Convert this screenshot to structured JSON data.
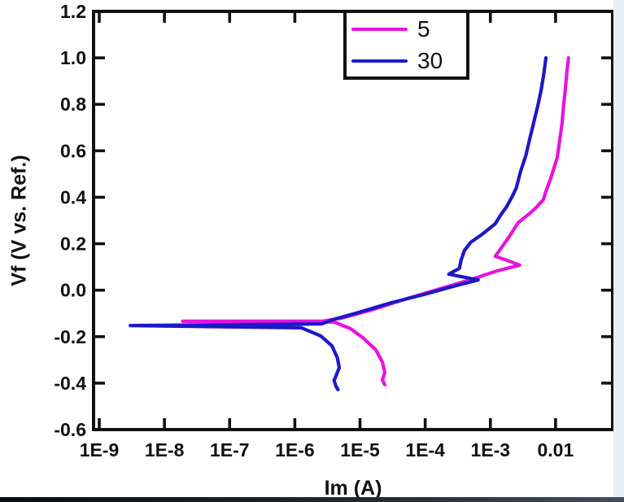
{
  "colors": {
    "series_5": "#E812E0",
    "series_30": "#1D18C8",
    "axis_frame": "#111111",
    "right_edge_strip": "#eaeff6",
    "bottom_edge_bar": "#232932"
  },
  "chart_data": {
    "type": "line",
    "title": "",
    "xlabel": "Im (A)",
    "ylabel": "Vf (V vs. Ref.)",
    "x_scale": "log",
    "xlim_log10": [
      -9.0875,
      -1.125
    ],
    "ylim": [
      -0.6,
      1.2
    ],
    "grid": false,
    "legend_position": "top-center",
    "x_ticks": [
      {
        "log10": -9,
        "label": "1E-9"
      },
      {
        "log10": -8,
        "label": "1E-8"
      },
      {
        "log10": -7,
        "label": "1E-7"
      },
      {
        "log10": -6,
        "label": "1E-6"
      },
      {
        "log10": -5,
        "label": "1E-5"
      },
      {
        "log10": -4,
        "label": "1E-4"
      },
      {
        "log10": -3,
        "label": "1E-3"
      },
      {
        "log10": -2,
        "label": "0.01"
      }
    ],
    "y_ticks": [
      {
        "value": 1.2,
        "label": "1.2"
      },
      {
        "value": 1.0,
        "label": "1.0"
      },
      {
        "value": 0.8,
        "label": "0.8"
      },
      {
        "value": 0.6,
        "label": "0.6"
      },
      {
        "value": 0.4,
        "label": "0.4"
      },
      {
        "value": 0.2,
        "label": "0.2"
      },
      {
        "value": 0.0,
        "label": "0.0"
      },
      {
        "value": -0.2,
        "label": "-0.2"
      },
      {
        "value": -0.4,
        "label": "-0.4"
      },
      {
        "value": -0.6,
        "label": "-0.6"
      }
    ],
    "series": [
      {
        "name": "5",
        "color": "#E812E0",
        "points": [
          [
            0.0158,
            1.0
          ],
          [
            0.0148,
            0.93
          ],
          [
            0.0141,
            0.86
          ],
          [
            0.0132,
            0.79
          ],
          [
            0.0126,
            0.72
          ],
          [
            0.0115,
            0.64
          ],
          [
            0.0106,
            0.57
          ],
          [
            0.0093,
            0.52
          ],
          [
            0.0084,
            0.48
          ],
          [
            0.0072,
            0.43
          ],
          [
            0.0065,
            0.39
          ],
          [
            0.005,
            0.355
          ],
          [
            0.004,
            0.33
          ],
          [
            0.00266,
            0.29
          ],
          [
            0.00194,
            0.23
          ],
          [
            0.00145,
            0.18
          ],
          [
            0.00119,
            0.146
          ],
          [
            0.00178,
            0.129
          ],
          [
            0.00282,
            0.108
          ],
          [
            0.00126,
            0.083
          ],
          [
            0.00053,
            0.048
          ],
          [
            0.000168,
            0.006
          ],
          [
            5.3e-05,
            -0.036
          ],
          [
            1.68e-05,
            -0.081
          ],
          [
            5.3e-06,
            -0.12
          ],
          [
            2.6e-06,
            -0.134
          ],
          [
            1.9e-08,
            -0.134
          ],
          [
            4e-06,
            -0.137
          ],
          [
            7.1e-06,
            -0.165
          ],
          [
            1.1e-05,
            -0.204
          ],
          [
            1.74e-05,
            -0.256
          ],
          [
            2.2e-05,
            -0.309
          ],
          [
            2.4e-05,
            -0.354
          ],
          [
            2.2e-05,
            -0.386
          ],
          [
            2.4e-05,
            -0.407
          ]
        ]
      },
      {
        "name": "30",
        "color": "#1D18C8",
        "points": [
          [
            0.0071,
            1.0
          ],
          [
            0.0066,
            0.93
          ],
          [
            0.006,
            0.86
          ],
          [
            0.0053,
            0.79
          ],
          [
            0.0046,
            0.72
          ],
          [
            0.004,
            0.65
          ],
          [
            0.0035,
            0.58
          ],
          [
            0.0029,
            0.51
          ],
          [
            0.0025,
            0.44
          ],
          [
            0.00213,
            0.4
          ],
          [
            0.00178,
            0.36
          ],
          [
            0.00141,
            0.32
          ],
          [
            0.00119,
            0.286
          ],
          [
            0.00075,
            0.241
          ],
          [
            0.0005,
            0.206
          ],
          [
            0.0004,
            0.171
          ],
          [
            0.000355,
            0.129
          ],
          [
            0.000335,
            0.094
          ],
          [
            0.00023,
            0.069
          ],
          [
            0.00065,
            0.044
          ],
          [
            0.0003,
            0.02
          ],
          [
            9.4e-05,
            -0.019
          ],
          [
            3e-05,
            -0.054
          ],
          [
            9.4e-06,
            -0.096
          ],
          [
            3.8e-06,
            -0.127
          ],
          [
            2.6e-06,
            -0.145
          ],
          [
            3e-09,
            -0.152
          ],
          [
            1.26e-06,
            -0.162
          ],
          [
            2.5e-06,
            -0.197
          ],
          [
            3.7e-06,
            -0.239
          ],
          [
            4.5e-06,
            -0.291
          ],
          [
            4.8e-06,
            -0.333
          ],
          [
            4.3e-06,
            -0.368
          ],
          [
            4e-06,
            -0.389
          ],
          [
            4.3e-06,
            -0.414
          ],
          [
            4.6e-06,
            -0.428
          ]
        ]
      }
    ]
  }
}
